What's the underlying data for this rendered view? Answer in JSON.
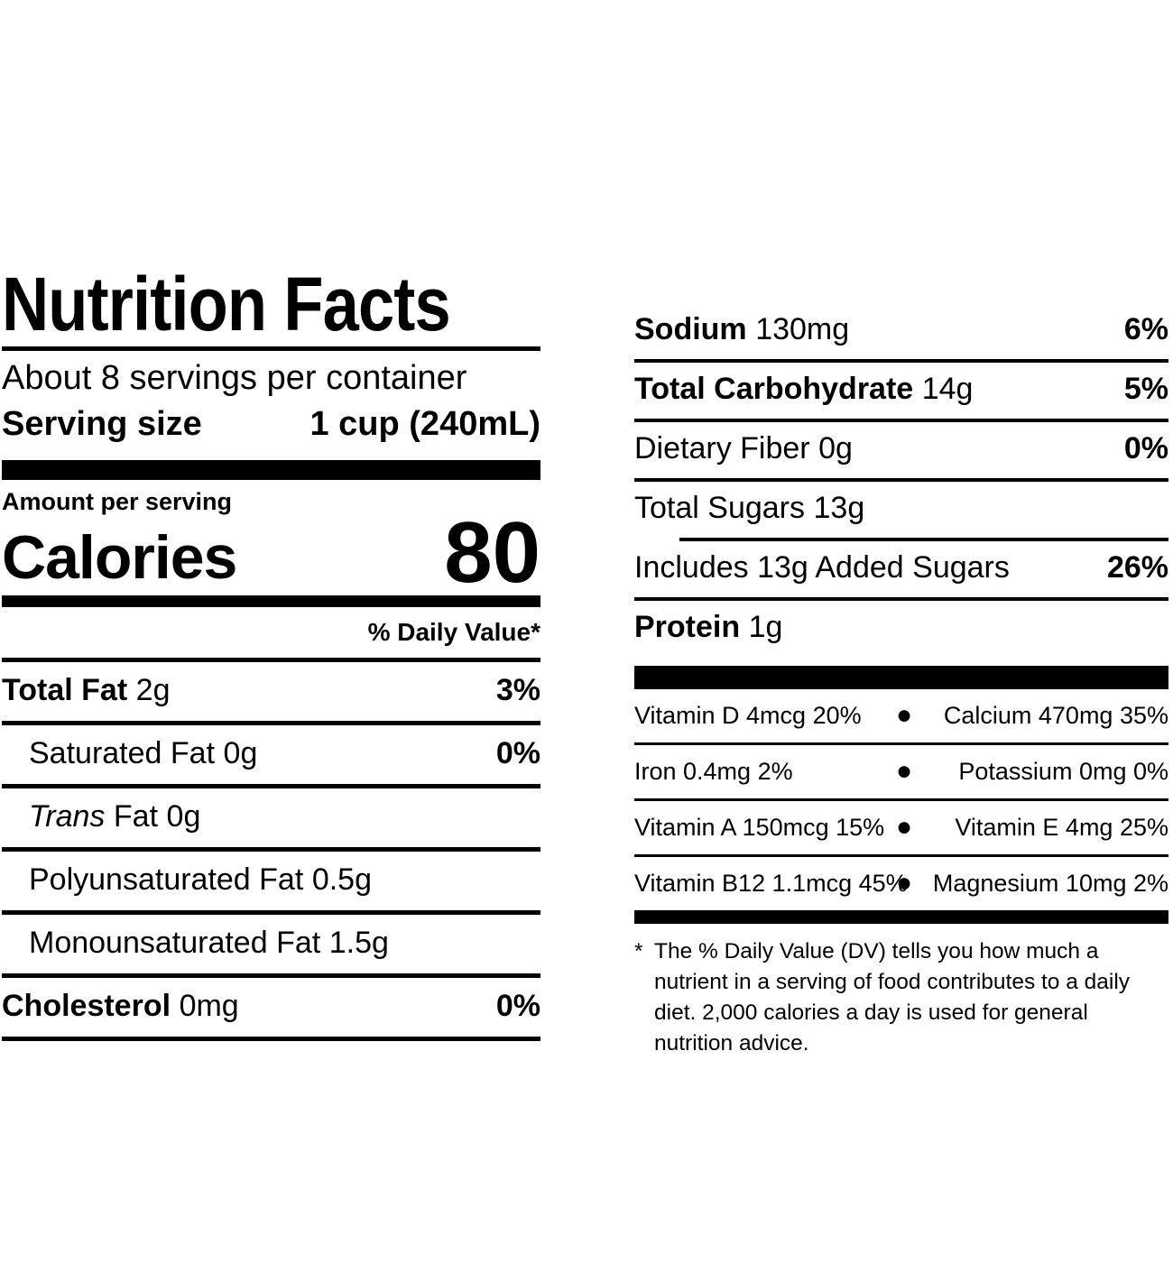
{
  "nutrition_label": {
    "colors": {
      "ink": "#000000",
      "background": "#ffffff"
    },
    "title": "Nutrition Facts",
    "servings_per_container": "About 8 servings per container",
    "serving_size": {
      "label": "Serving size",
      "value": "1 cup (240mL)"
    },
    "amount_per_serving": "Amount per serving",
    "calories": {
      "label": "Calories",
      "value": "80"
    },
    "daily_value_header": "% Daily Value*",
    "left_rows": [
      {
        "name": "Total Fat",
        "amount": "2g",
        "dv": "3%"
      },
      {
        "name": "Saturated Fat",
        "amount": "0g",
        "dv": "0%"
      },
      {
        "name_italic": "Trans",
        "name": "Fat",
        "amount": "0g",
        "dv": ""
      },
      {
        "name": "Polyunsaturated Fat",
        "amount": "0.5g",
        "dv": ""
      },
      {
        "name": "Monounsaturated Fat",
        "amount": "1.5g",
        "dv": ""
      },
      {
        "name": "Cholesterol",
        "amount": "0mg",
        "dv": "0%"
      }
    ],
    "right_rows": [
      {
        "name": "Sodium",
        "amount": "130mg",
        "dv": "6%"
      },
      {
        "name": "Total Carbohydrate",
        "amount": "14g",
        "dv": "5%"
      },
      {
        "name": "Dietary Fiber",
        "amount": "0g",
        "dv": "0%"
      },
      {
        "name": "Total Sugars",
        "amount": "13g",
        "dv": ""
      },
      {
        "name": "Includes 13g Added Sugars",
        "amount": "",
        "dv": "26%"
      },
      {
        "name": "Protein",
        "amount": "1g",
        "dv": ""
      }
    ],
    "micronutrients": [
      {
        "left": "Vitamin D 4mcg 20%",
        "bullet": "●",
        "right": "Calcium 470mg 35%"
      },
      {
        "left": "Iron 0.4mg 2%",
        "bullet": "●",
        "right": "Potassium 0mg 0%"
      },
      {
        "left": "Vitamin A 150mcg 15%",
        "bullet": "●",
        "right": "Vitamin E 4mg 25%"
      },
      {
        "left": "Vitamin B12 1.1mcg 45%",
        "bullet": "●",
        "right": "Magnesium 10mg 2%"
      }
    ],
    "footnote": {
      "marker": "*",
      "text": "The % Daily Value (DV) tells you how much a nutrient in a serving of food contributes to a daily diet. 2,000 calories a day is used for general nutrition advice."
    }
  }
}
